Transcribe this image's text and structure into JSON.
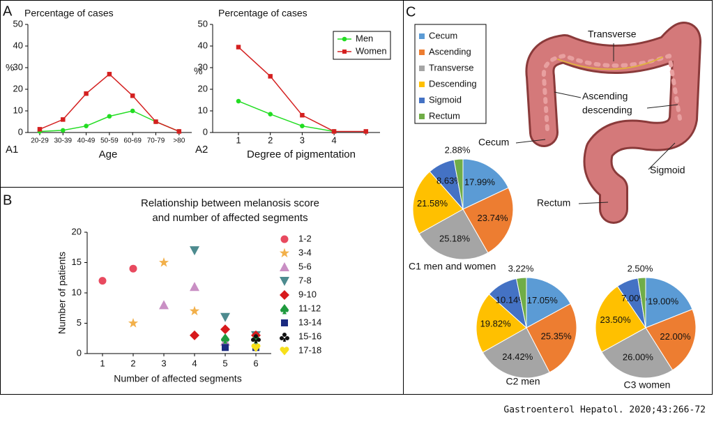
{
  "chart_data": [
    {
      "type": "line",
      "panel": "A",
      "label": "A1",
      "title": "Percentage of cases",
      "ylabel": "%",
      "xlabel": "Age",
      "categories": [
        "20-29",
        "30-39",
        "40-49",
        "50-59",
        "60-69",
        "70-79",
        ">80"
      ],
      "series": [
        {
          "name": "Men",
          "color": "#22dd22",
          "marker": "circle",
          "values": [
            0.5,
            1,
            3,
            7.5,
            10,
            5,
            0.5
          ]
        },
        {
          "name": "Women",
          "color": "#d42020",
          "marker": "square",
          "values": [
            1.5,
            6,
            18,
            27,
            17,
            5,
            0.5
          ]
        }
      ],
      "ylim": [
        0,
        50
      ],
      "yticks": [
        0,
        10,
        20,
        30,
        40,
        50
      ]
    },
    {
      "type": "line",
      "label": "A2",
      "title": "Percentage of cases",
      "ylabel": "%",
      "xlabel": "Degree of pigmentation",
      "categories": [
        "1",
        "2",
        "3",
        "4",
        null
      ],
      "series": [
        {
          "name": "Men",
          "color": "#22dd22",
          "marker": "circle",
          "values": [
            14.5,
            8.5,
            3,
            0.5,
            null
          ]
        },
        {
          "name": "Women",
          "color": "#d42020",
          "marker": "square",
          "values": [
            39.5,
            26,
            8,
            0.5,
            0.5
          ]
        }
      ],
      "ylim": [
        0,
        50
      ],
      "yticks": [
        0,
        10,
        20,
        30,
        40,
        50
      ],
      "legend": "upper right"
    },
    {
      "type": "scatter",
      "panel": "B",
      "title": [
        "Relationship between melanosis score",
        "and number of affected segments"
      ],
      "xlabel": "Number of affected segments",
      "ylabel": "Number of patients",
      "xlim": [
        0.5,
        6.5
      ],
      "xticks": [
        1,
        2,
        3,
        4,
        5,
        6
      ],
      "ylim": [
        0,
        20
      ],
      "yticks": [
        0,
        5,
        10,
        15,
        20
      ],
      "legend": "right",
      "series": [
        {
          "name": "1-2",
          "color": "#e84a5f",
          "marker": "circle",
          "x": [
            1,
            2
          ],
          "values": [
            12,
            14
          ]
        },
        {
          "name": "3-4",
          "color": "#f2b04a",
          "marker": "star",
          "x": [
            2,
            3,
            4
          ],
          "values": [
            5,
            15,
            7
          ]
        },
        {
          "name": "5-6",
          "color": "#c98fc4",
          "marker": "triangle",
          "x": [
            3,
            4,
            5
          ],
          "values": [
            8,
            11,
            2
          ]
        },
        {
          "name": "7-8",
          "color": "#4d8b8f",
          "marker": "triangle-down",
          "x": [
            4,
            5,
            6
          ],
          "values": [
            17,
            6,
            3
          ]
        },
        {
          "name": "9-10",
          "color": "#d7191c",
          "marker": "diamond",
          "x": [
            4,
            5,
            6
          ],
          "values": [
            3,
            4,
            3
          ]
        },
        {
          "name": "11-12",
          "color": "#1f9a3e",
          "marker": "spade",
          "x": [
            5,
            6
          ],
          "values": [
            2.5,
            2.5
          ]
        },
        {
          "name": "13-14",
          "color": "#1b2a80",
          "marker": "square",
          "x": [
            5,
            6
          ],
          "values": [
            1,
            1
          ]
        },
        {
          "name": "15-16",
          "color": "#111111",
          "marker": "club",
          "x": [
            6
          ],
          "values": [
            2.5
          ]
        },
        {
          "name": "17-18",
          "color": "#f7e01a",
          "marker": "heart",
          "x": [
            6
          ],
          "values": [
            1
          ]
        }
      ]
    },
    {
      "type": "pie",
      "panel": "C",
      "label": "C1 men and women",
      "legend": "upper left",
      "categories": [
        "Cecum",
        "Ascending",
        "Transverse",
        "Descending",
        "Sigmoid",
        "Rectum"
      ],
      "colors": [
        "#5b9bd5",
        "#ed7d31",
        "#a5a5a5",
        "#ffc000",
        "#4472c4",
        "#70ad47"
      ],
      "values": [
        17.99,
        23.74,
        25.18,
        21.58,
        8.63,
        2.88
      ],
      "value_labels": [
        "17.99%",
        "23.74%",
        "25.18%",
        "21.58%",
        "8.63%",
        "2.88%"
      ]
    },
    {
      "type": "pie",
      "label": "C2 men",
      "colors": [
        "#5b9bd5",
        "#ed7d31",
        "#a5a5a5",
        "#ffc000",
        "#4472c4",
        "#70ad47"
      ],
      "values": [
        17.05,
        25.35,
        24.42,
        19.82,
        10.14,
        3.22
      ],
      "value_labels": [
        "17.05%",
        "25.35%",
        "24.42%",
        "19.82%",
        "10.14%",
        "3.22%"
      ]
    },
    {
      "type": "pie",
      "label": "C3 women",
      "colors": [
        "#5b9bd5",
        "#ed7d31",
        "#a5a5a5",
        "#ffc000",
        "#4472c4",
        "#70ad47"
      ],
      "values": [
        19.0,
        22.0,
        26.0,
        23.5,
        7.0,
        2.5
      ],
      "value_labels": [
        "19.00%",
        "22.00%",
        "26.00%",
        "23.50%",
        "7.00%",
        "2.50%"
      ]
    }
  ],
  "anatomy": {
    "transverse": "Transverse",
    "ascending": "Ascending",
    "descending": "descending",
    "cecum": "Cecum",
    "sigmoid": "Sigmoid",
    "rectum": "Rectum"
  },
  "footer": "Gastroenterol Hepatol. 2020;43:266-72"
}
